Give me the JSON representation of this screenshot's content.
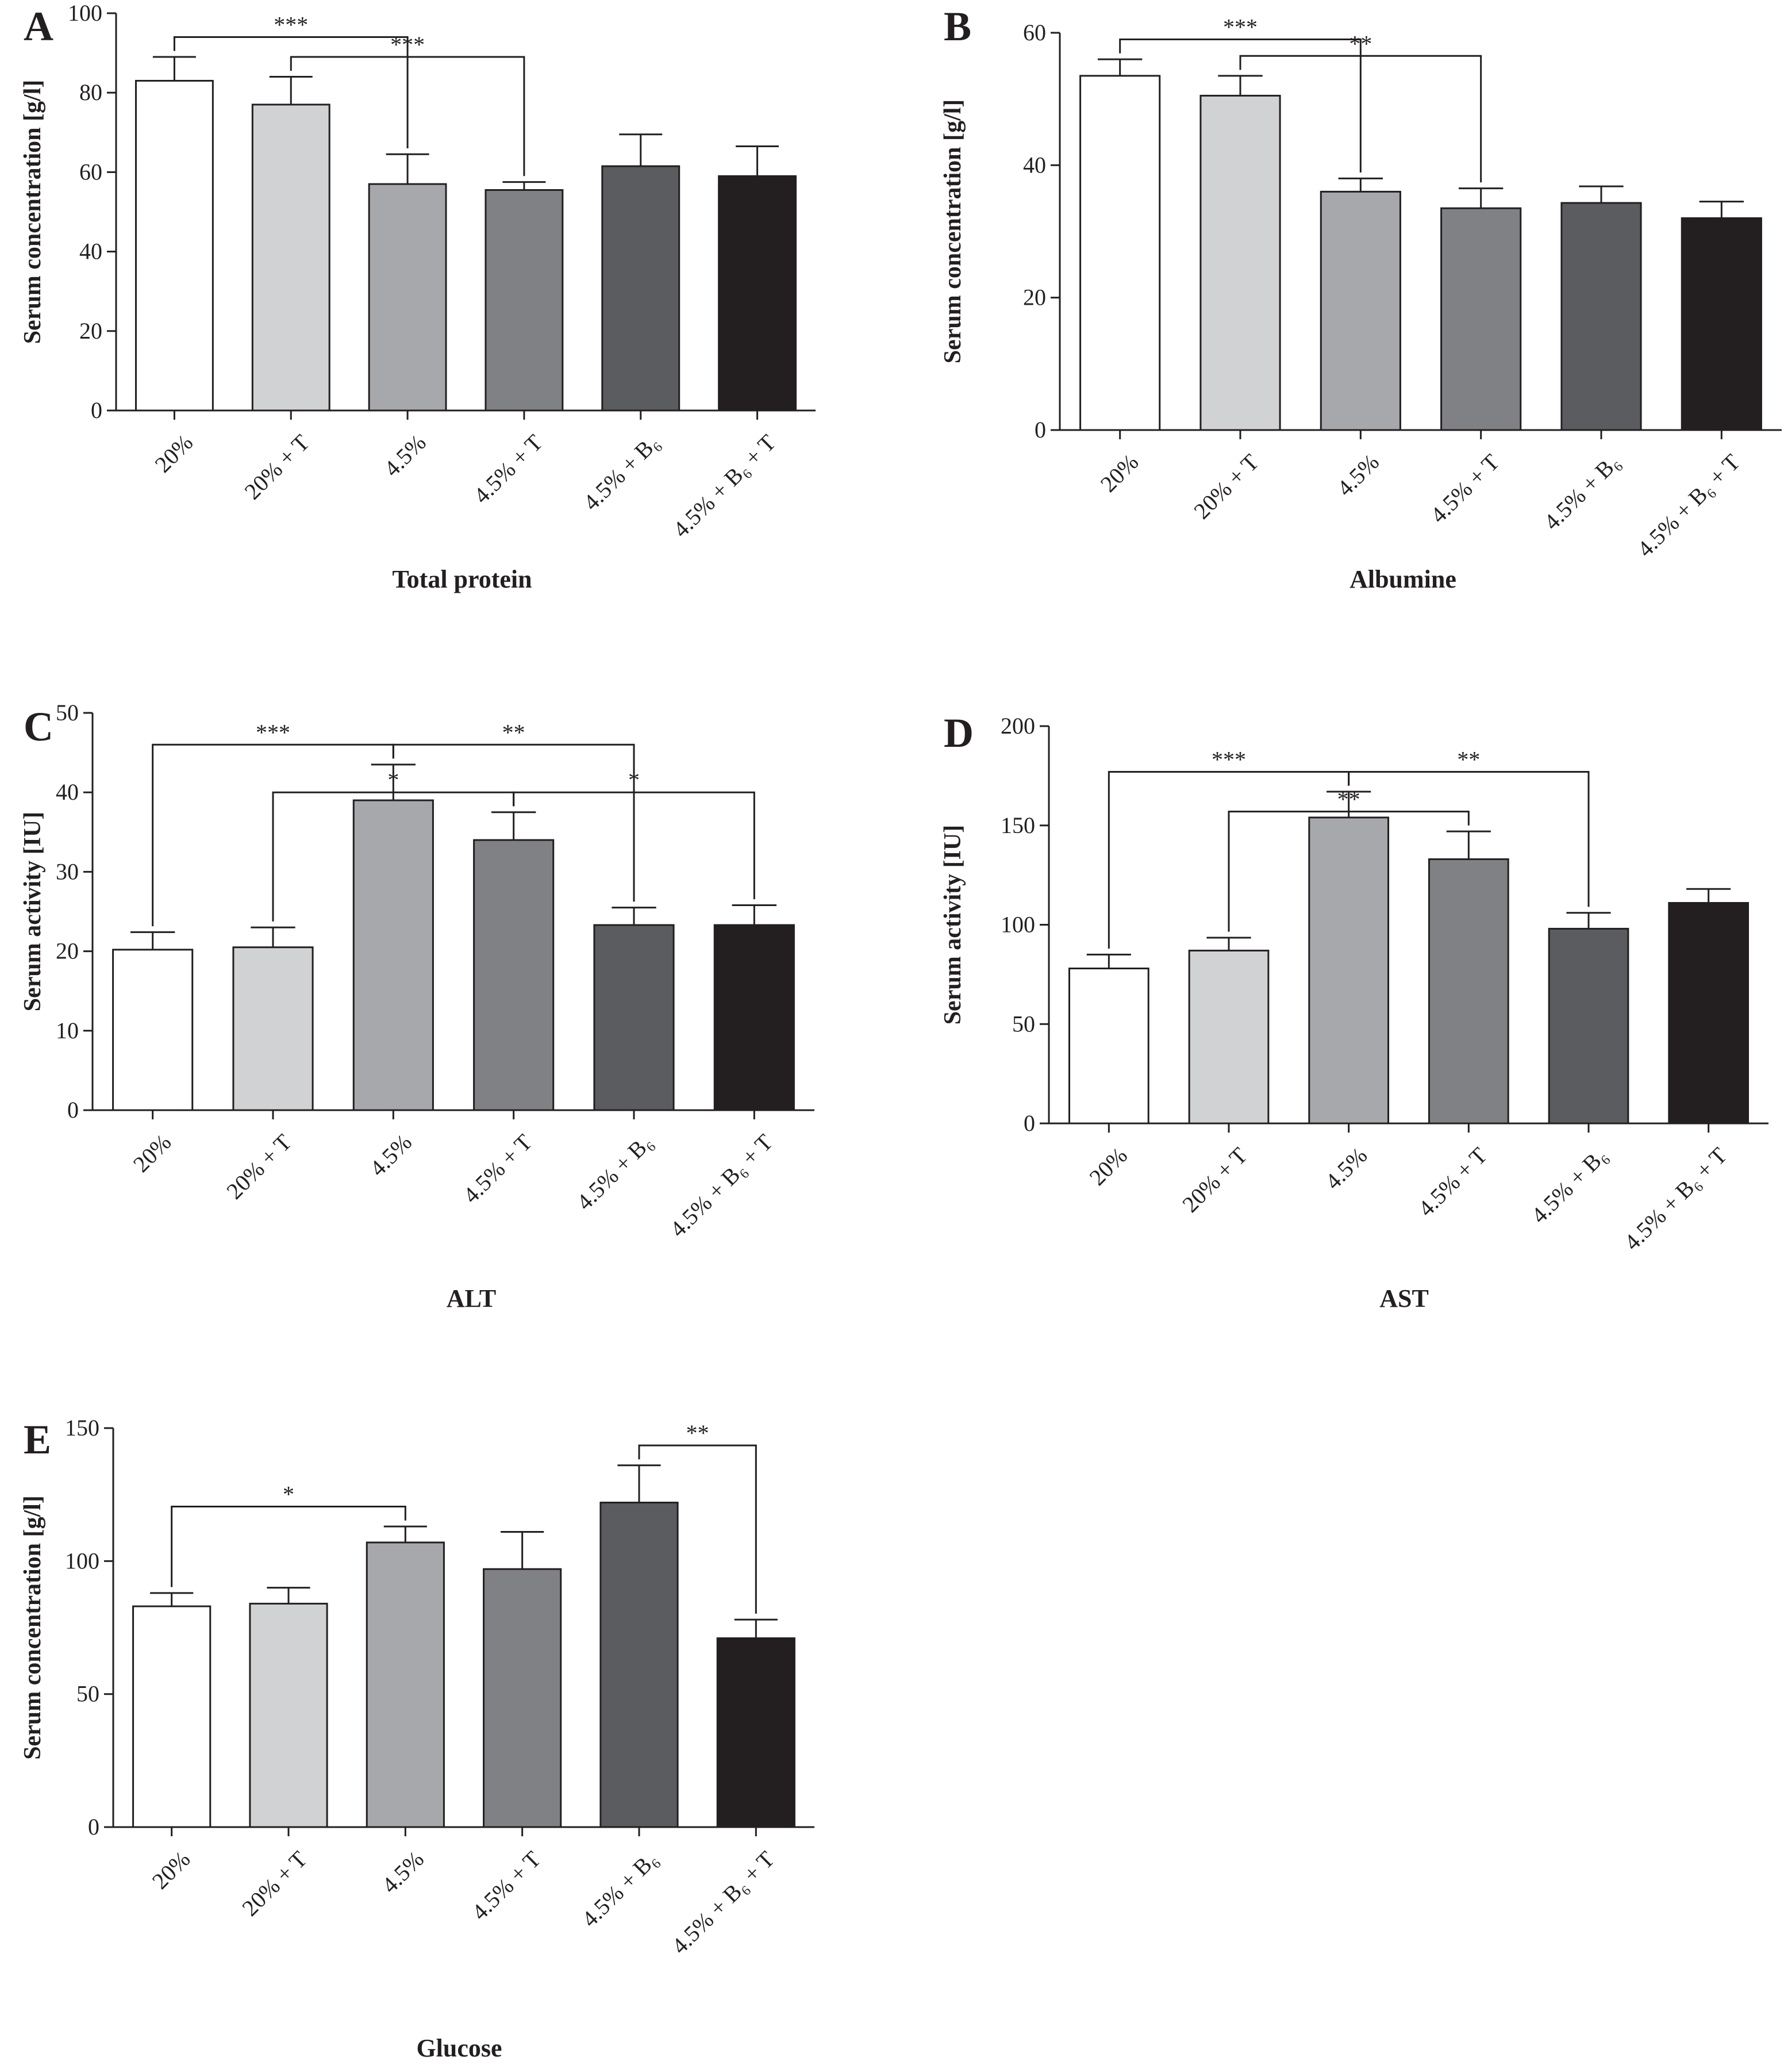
{
  "chart_data": [
    {
      "type": "bar",
      "panel": "A",
      "title": "Total protein",
      "y_label": "Serum concentration [g/l]",
      "categories": [
        "20%",
        "20% + T",
        "4.5%",
        "4.5% + T",
        "4.5% + B₆",
        "4.5% + B₆ + T"
      ],
      "values": [
        83,
        77,
        57,
        55.5,
        61.5,
        59
      ],
      "errors": [
        6,
        7,
        7.5,
        2,
        8,
        7.5
      ],
      "colors": [
        "#ffffff",
        "#d1d2d4",
        "#a7a8ab",
        "#808184",
        "#5b5c5f",
        "#231f20"
      ],
      "ylim": [
        0,
        100
      ],
      "yticks": [
        0,
        20,
        40,
        60,
        80,
        100
      ],
      "annotations": [
        {
          "from": "20%",
          "to": "4.5%",
          "label": "***"
        },
        {
          "from": "20% + T",
          "to": "4.5% + T",
          "label": "***"
        }
      ]
    },
    {
      "type": "bar",
      "panel": "B",
      "title": "Albumine",
      "y_label": "Serum concentration [g/l]",
      "categories": [
        "20%",
        "20% + T",
        "4.5%",
        "4.5% + T",
        "4.5% + B₆",
        "4.5% + B₆ + T"
      ],
      "values": [
        53.5,
        50.5,
        36,
        33.5,
        34.3,
        32
      ],
      "errors": [
        2.5,
        3,
        2,
        3,
        2.5,
        2.5
      ],
      "colors": [
        "#ffffff",
        "#d1d2d4",
        "#a7a8ab",
        "#808184",
        "#5b5c5f",
        "#231f20"
      ],
      "ylim": [
        0,
        60
      ],
      "yticks": [
        0,
        20,
        40,
        60
      ],
      "annotations": [
        {
          "from": "20%",
          "to": "4.5%",
          "label": "***"
        },
        {
          "from": "20% + T",
          "to": "4.5% + T",
          "label": "**"
        }
      ]
    },
    {
      "type": "bar",
      "panel": "C",
      "title": "ALT",
      "y_label": "Serum activity [IU]",
      "categories": [
        "20%",
        "20% + T",
        "4.5%",
        "4.5% + T",
        "4.5% + B₆",
        "4.5% + B₆ + T"
      ],
      "values": [
        20.2,
        20.5,
        39,
        34,
        23.3,
        23.3
      ],
      "errors": [
        2.2,
        2.5,
        4.5,
        3.5,
        2.2,
        2.5
      ],
      "colors": [
        "#ffffff",
        "#d1d2d4",
        "#a7a8ab",
        "#808184",
        "#5b5c5f",
        "#231f20"
      ],
      "ylim": [
        0,
        50
      ],
      "yticks": [
        0,
        10,
        20,
        30,
        40,
        50
      ],
      "annotations": [
        {
          "from": "20%",
          "to": "4.5%",
          "label": "***"
        },
        {
          "from": "4.5%",
          "to": "4.5% + B₆",
          "label": "**"
        },
        {
          "from": "20% + T",
          "to": "4.5% + T",
          "label": "*"
        },
        {
          "from": "4.5% + T",
          "to": "4.5% + B₆ + T",
          "label": "*"
        }
      ]
    },
    {
      "type": "bar",
      "panel": "D",
      "title": "AST",
      "y_label": "Serum activity [IU]",
      "categories": [
        "20%",
        "20% + T",
        "4.5%",
        "4.5% + T",
        "4.5% + B₆",
        "4.5% + B₆ + T"
      ],
      "values": [
        78,
        87,
        154,
        133,
        98,
        111
      ],
      "errors": [
        7,
        6.5,
        13,
        14,
        8,
        7
      ],
      "colors": [
        "#ffffff",
        "#d1d2d4",
        "#a7a8ab",
        "#808184",
        "#5b5c5f",
        "#231f20"
      ],
      "ylim": [
        0,
        200
      ],
      "yticks": [
        0,
        50,
        100,
        150,
        200
      ],
      "annotations": [
        {
          "from": "20%",
          "to": "4.5%",
          "label": "***"
        },
        {
          "from": "4.5%",
          "to": "4.5% + B₆",
          "label": "**"
        },
        {
          "from": "20% + T",
          "to": "4.5% + T",
          "label": "**"
        }
      ]
    },
    {
      "type": "bar",
      "panel": "E",
      "title": "Glucose",
      "y_label": "Serum concentration [g/l]",
      "categories": [
        "20%",
        "20% + T",
        "4.5%",
        "4.5% + T",
        "4.5% + B₆",
        "4.5% + B₆ + T"
      ],
      "values": [
        83,
        84,
        107,
        97,
        122,
        71
      ],
      "errors": [
        5,
        6,
        6,
        14,
        14,
        7
      ],
      "colors": [
        "#ffffff",
        "#d1d2d4",
        "#a7a8ab",
        "#808184",
        "#5b5c5f",
        "#231f20"
      ],
      "ylim": [
        0,
        150
      ],
      "yticks": [
        0,
        50,
        100,
        150
      ],
      "annotations": [
        {
          "from": "20%",
          "to": "4.5%",
          "label": "*"
        },
        {
          "from": "4.5% + B₆",
          "to": "4.5% + B₆ + T",
          "label": "**"
        }
      ]
    }
  ]
}
